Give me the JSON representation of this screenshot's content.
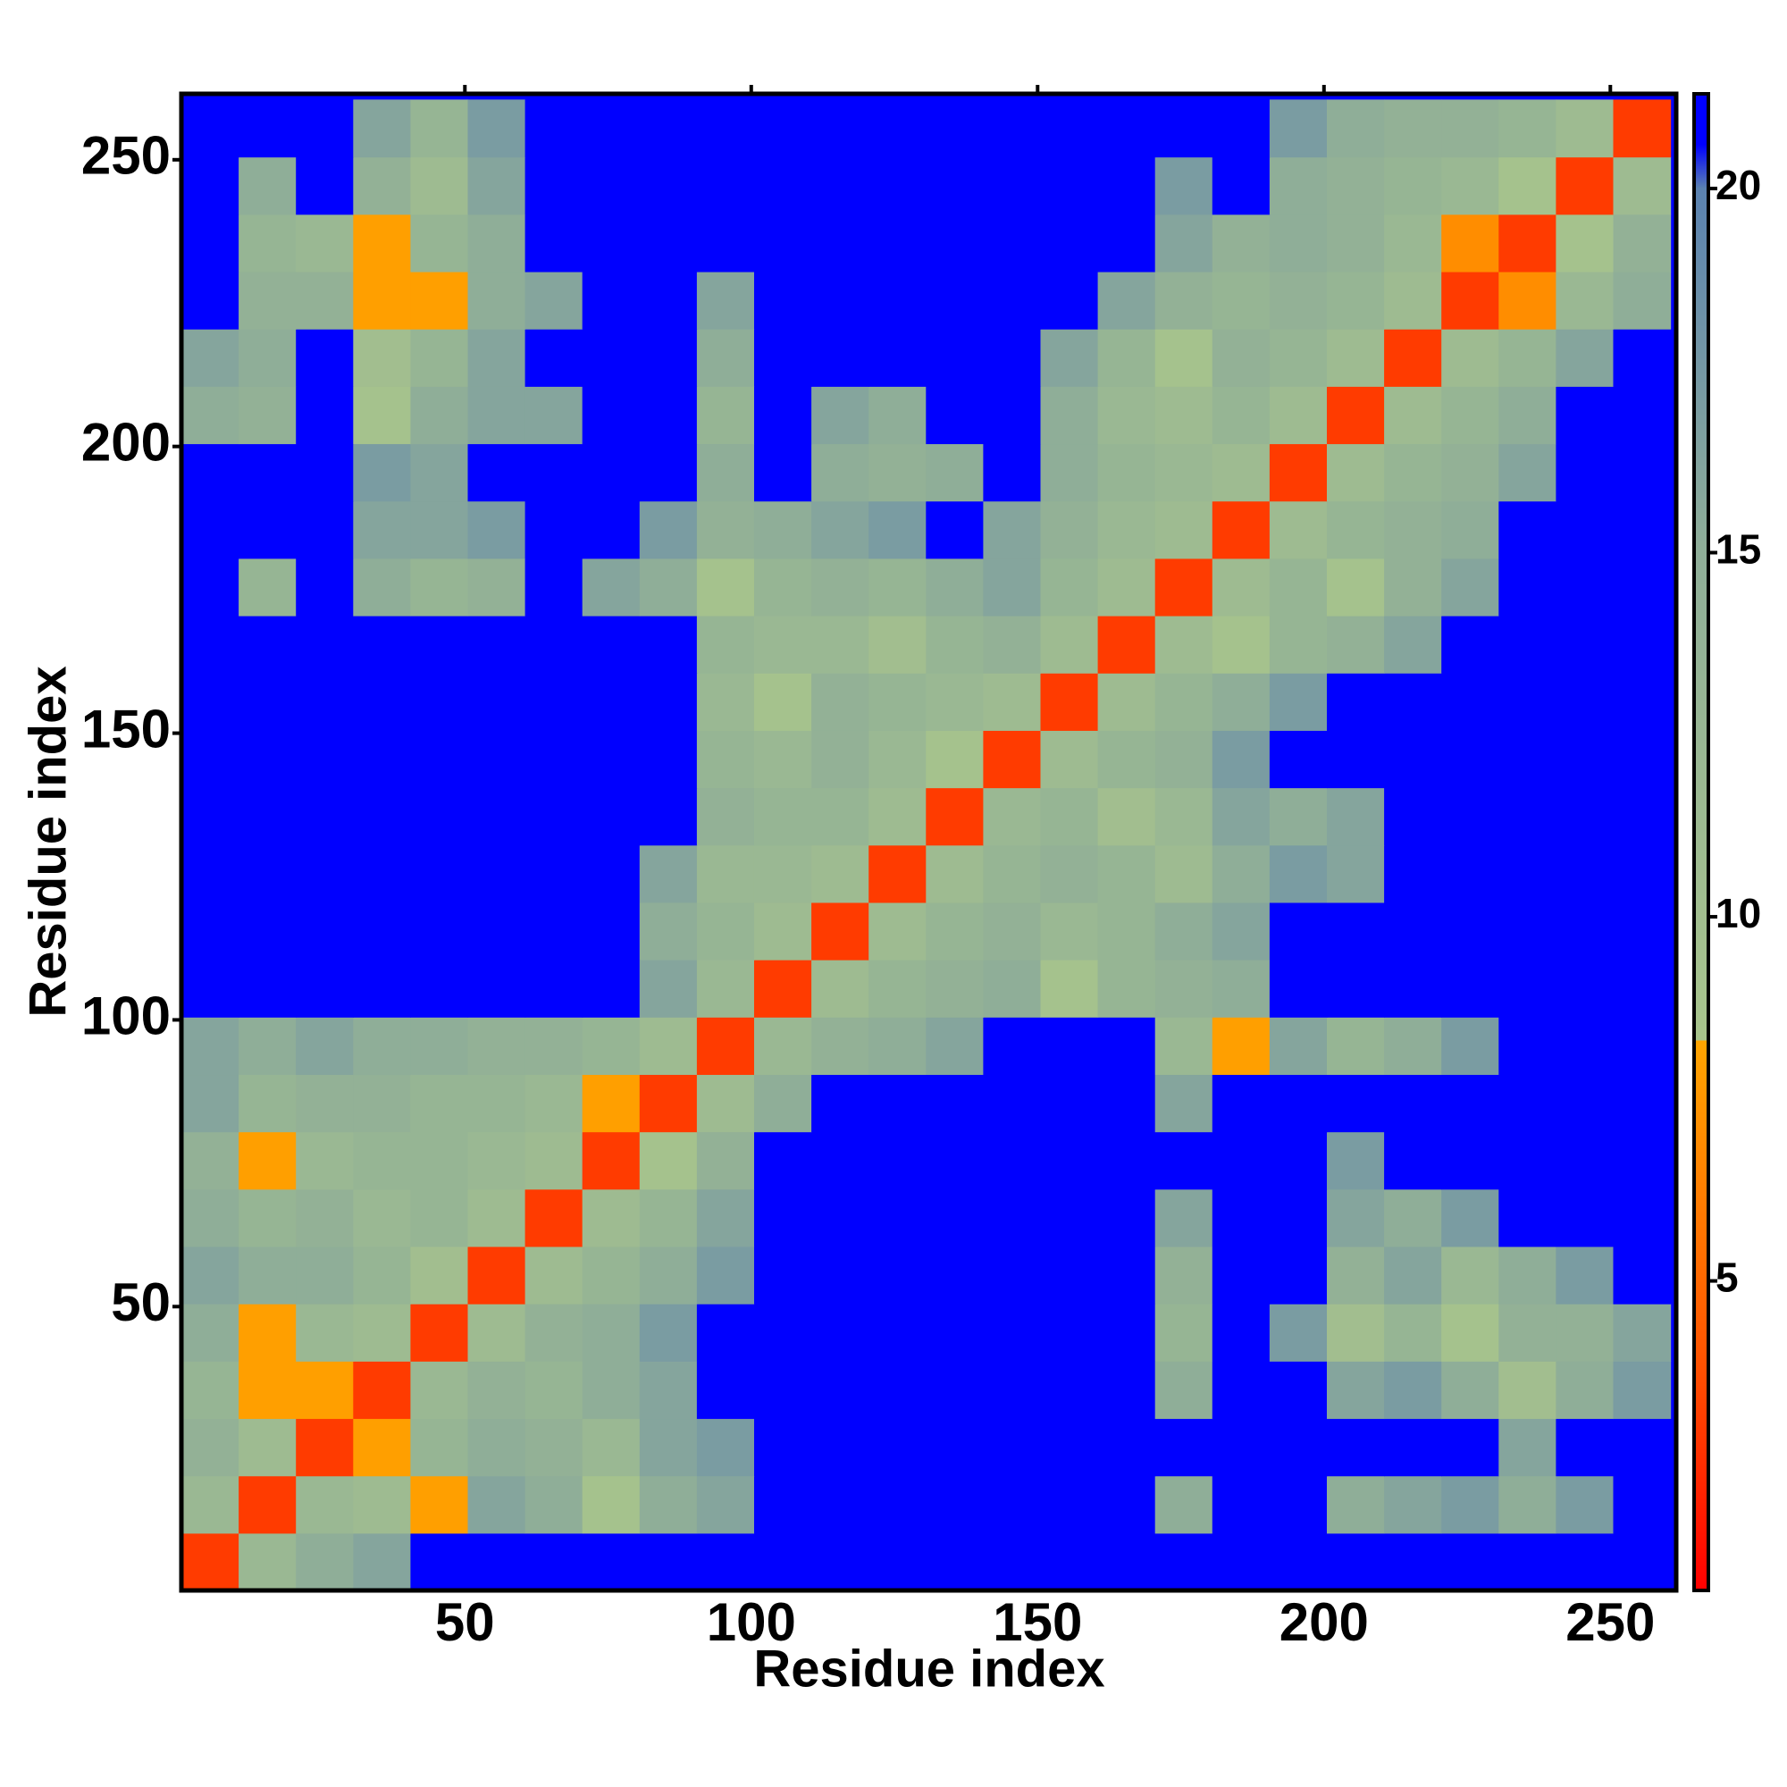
{
  "chart_data": {
    "type": "heatmap",
    "x_label": "Residue index",
    "y_label": "Residue index",
    "xlim": [
      0.5,
      261.5
    ],
    "ylim": [
      0.5,
      261.5
    ],
    "xticks": [
      50,
      100,
      150,
      200,
      250
    ],
    "yticks": [
      50,
      100,
      150,
      200,
      250
    ],
    "x": [
      5.5,
      15.5,
      25.5,
      35.5,
      45.5,
      55.5,
      65.5,
      75.5,
      85.5,
      95.5,
      105.5,
      115.5,
      125.5,
      135.5,
      145.5,
      155.5,
      165.5,
      175.5,
      185.5,
      195.5,
      205.5,
      215.5,
      225.5,
      235.5,
      245.5,
      255.5
    ],
    "y": [
      5.5,
      15.5,
      25.5,
      35.5,
      45.5,
      55.5,
      65.5,
      75.5,
      85.5,
      95.5,
      105.5,
      115.5,
      125.5,
      135.5,
      145.5,
      155.5,
      165.5,
      175.5,
      185.5,
      195.5,
      205.5,
      215.5,
      225.5,
      235.5,
      245.5,
      255.5
    ],
    "z": [
      [
        3,
        12,
        15,
        16,
        21,
        21,
        21,
        21,
        21,
        21,
        21,
        21,
        21,
        21,
        21,
        21,
        21,
        21,
        21,
        21,
        21,
        21,
        21,
        21,
        21,
        21
      ],
      [
        12,
        3,
        12,
        11,
        8,
        16,
        15,
        9,
        15,
        16,
        21,
        21,
        21,
        21,
        21,
        21,
        21,
        15,
        21,
        21,
        15,
        16,
        17,
        15,
        17,
        21
      ],
      [
        14,
        11,
        3,
        8,
        13,
        15,
        14,
        12,
        16,
        17,
        21,
        21,
        21,
        21,
        21,
        21,
        21,
        21,
        21,
        21,
        21,
        21,
        21,
        16,
        21,
        21
      ],
      [
        13,
        8,
        8,
        3,
        12,
        14,
        13,
        15,
        16,
        21,
        21,
        21,
        21,
        21,
        21,
        21,
        21,
        15,
        21,
        21,
        16,
        17,
        15,
        10,
        15,
        17
      ],
      [
        15,
        8,
        12,
        11,
        3,
        11,
        14,
        15,
        17,
        21,
        21,
        21,
        21,
        21,
        21,
        21,
        21,
        13,
        21,
        17,
        10,
        13,
        9,
        14,
        14,
        16
      ],
      [
        16,
        15,
        15,
        13,
        10,
        3,
        11,
        13,
        15,
        17,
        21,
        21,
        21,
        21,
        21,
        21,
        21,
        14,
        21,
        21,
        14,
        16,
        12,
        15,
        17,
        21
      ],
      [
        15,
        13,
        14,
        12,
        13,
        11,
        3,
        11,
        13,
        16,
        21,
        21,
        21,
        21,
        21,
        21,
        21,
        16,
        21,
        21,
        16,
        15,
        17,
        21,
        21,
        21
      ],
      [
        14,
        8,
        12,
        13,
        13,
        12,
        11,
        3,
        9,
        14,
        21,
        21,
        21,
        21,
        21,
        21,
        21,
        21,
        21,
        21,
        17,
        21,
        21,
        21,
        21,
        21
      ],
      [
        16,
        13,
        14,
        14,
        13,
        13,
        12,
        8,
        3,
        11,
        15,
        21,
        21,
        21,
        21,
        21,
        21,
        16,
        21,
        21,
        21,
        21,
        21,
        21,
        21,
        21
      ],
      [
        16,
        15,
        16,
        15,
        15,
        14,
        14,
        13,
        11,
        3,
        12,
        14,
        15,
        16,
        21,
        21,
        21,
        12,
        8,
        16,
        13,
        15,
        17,
        21,
        21,
        21
      ],
      [
        21,
        21,
        21,
        21,
        21,
        21,
        21,
        21,
        16,
        12,
        3,
        11,
        13,
        14,
        15,
        9,
        13,
        14,
        15,
        21,
        21,
        21,
        21,
        21,
        21,
        21
      ],
      [
        21,
        21,
        21,
        21,
        21,
        21,
        21,
        21,
        15,
        13,
        11,
        3,
        11,
        13,
        14,
        12,
        13,
        15,
        16,
        21,
        21,
        21,
        21,
        21,
        21,
        21
      ],
      [
        21,
        21,
        21,
        21,
        21,
        21,
        21,
        21,
        16,
        12,
        12,
        11,
        3,
        11,
        13,
        14,
        13,
        11,
        15,
        17,
        16,
        21,
        21,
        21,
        21,
        21
      ],
      [
        21,
        21,
        21,
        21,
        21,
        21,
        21,
        21,
        21,
        14,
        13,
        13,
        11,
        3,
        12,
        13,
        10,
        12,
        16,
        15,
        16,
        21,
        21,
        21,
        21,
        21
      ],
      [
        21,
        21,
        21,
        21,
        21,
        21,
        21,
        21,
        21,
        13,
        12,
        14,
        12,
        9,
        3,
        11,
        13,
        14,
        17,
        21,
        21,
        21,
        21,
        21,
        21,
        21
      ],
      [
        21,
        21,
        21,
        21,
        21,
        21,
        21,
        21,
        21,
        12,
        9,
        14,
        13,
        12,
        11,
        3,
        11,
        13,
        15,
        17,
        21,
        21,
        21,
        21,
        21,
        21
      ],
      [
        21,
        21,
        21,
        21,
        21,
        21,
        21,
        21,
        21,
        13,
        12,
        12,
        10,
        13,
        14,
        11,
        3,
        11,
        9,
        13,
        14,
        16,
        21,
        21,
        21,
        21
      ],
      [
        21,
        13,
        21,
        15,
        13,
        14,
        21,
        16,
        15,
        9,
        13,
        14,
        13,
        15,
        16,
        13,
        11,
        3,
        11,
        13,
        9,
        14,
        16,
        21,
        21,
        21
      ],
      [
        21,
        21,
        21,
        16,
        16,
        17,
        21,
        21,
        17,
        14,
        15,
        16,
        17,
        21,
        16,
        14,
        12,
        11,
        3,
        11,
        13,
        14,
        15,
        21,
        21,
        21
      ],
      [
        21,
        21,
        21,
        17,
        16,
        21,
        21,
        21,
        21,
        15,
        21,
        15,
        14,
        15,
        21,
        15,
        13,
        12,
        11,
        3,
        11,
        13,
        14,
        16,
        21,
        21
      ],
      [
        15,
        14,
        21,
        9,
        15,
        16,
        16,
        21,
        21,
        13,
        21,
        16,
        15,
        21,
        21,
        15,
        12,
        11,
        13,
        11,
        3,
        11,
        13,
        15,
        21,
        21
      ],
      [
        16,
        15,
        21,
        10,
        13,
        16,
        21,
        21,
        21,
        15,
        21,
        21,
        21,
        21,
        21,
        16,
        13,
        9,
        14,
        13,
        11,
        3,
        11,
        13,
        16,
        21
      ],
      [
        21,
        14,
        14,
        8,
        8,
        15,
        16,
        21,
        21,
        16,
        21,
        21,
        21,
        21,
        21,
        21,
        16,
        14,
        13,
        14,
        13,
        11,
        3,
        7,
        12,
        15
      ],
      [
        21,
        13,
        12,
        8,
        13,
        15,
        21,
        21,
        21,
        21,
        21,
        21,
        21,
        21,
        21,
        21,
        21,
        16,
        14,
        15,
        14,
        12,
        7,
        3,
        9,
        14
      ],
      [
        21,
        15,
        21,
        14,
        11,
        16,
        21,
        21,
        21,
        21,
        21,
        21,
        21,
        21,
        21,
        21,
        21,
        17,
        21,
        15,
        14,
        13,
        12,
        9,
        3,
        11
      ],
      [
        21,
        21,
        21,
        16,
        13,
        17,
        21,
        21,
        21,
        21,
        21,
        21,
        21,
        21,
        21,
        21,
        21,
        21,
        21,
        17,
        15,
        14,
        14,
        13,
        11,
        3
      ]
    ],
    "clim": [
      0.75,
      21.3
    ],
    "cticks": [
      5,
      10,
      15,
      20
    ],
    "colorscale": [
      [
        0.75,
        "#ff0000"
      ],
      [
        4,
        "#ff5500"
      ],
      [
        8.3,
        "#ffa500"
      ],
      [
        8.3,
        "#a8c48c"
      ],
      [
        15,
        "#8fae98"
      ],
      [
        20,
        "#5b82b0"
      ],
      [
        20.6,
        "#0000ff"
      ],
      [
        21.3,
        "#0000ff"
      ]
    ]
  }
}
